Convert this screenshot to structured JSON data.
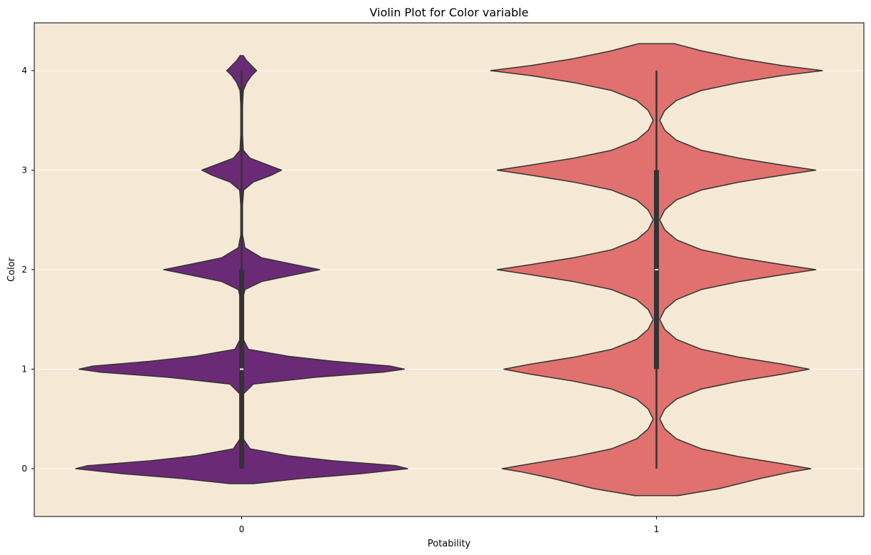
{
  "chart_data": {
    "type": "violin",
    "title": "Violin Plot for Color variable",
    "xlabel": "Potability",
    "ylabel": "Color",
    "categories": [
      "0",
      "1"
    ],
    "ylim": [
      -0.48,
      4.48
    ],
    "y_ticks": [
      0,
      1,
      2,
      3,
      4
    ],
    "grid": "horizontal",
    "background_color": "#f5e9d6",
    "series": [
      {
        "category": "0",
        "color": "#6b2a76",
        "box": {
          "q1": 0,
          "median": 1,
          "q3": 2,
          "whisker_low": 0,
          "whisker_high": 4
        },
        "density": [
          [
            -0.15,
            0.07
          ],
          [
            -0.1,
            0.35
          ],
          [
            -0.05,
            0.72
          ],
          [
            0.0,
            1.0
          ],
          [
            0.03,
            0.93
          ],
          [
            0.08,
            0.55
          ],
          [
            0.13,
            0.28
          ],
          [
            0.2,
            0.05
          ],
          [
            0.3,
            0.01
          ],
          [
            0.45,
            0.005
          ],
          [
            0.6,
            0.005
          ],
          [
            0.75,
            0.01
          ],
          [
            0.85,
            0.07
          ],
          [
            0.92,
            0.45
          ],
          [
            0.97,
            0.85
          ],
          [
            1.0,
            0.98
          ],
          [
            1.03,
            0.9
          ],
          [
            1.08,
            0.55
          ],
          [
            1.13,
            0.28
          ],
          [
            1.2,
            0.04
          ],
          [
            1.3,
            0.01
          ],
          [
            1.5,
            0.005
          ],
          [
            1.7,
            0.005
          ],
          [
            1.8,
            0.02
          ],
          [
            1.88,
            0.12
          ],
          [
            1.95,
            0.32
          ],
          [
            2.0,
            0.47
          ],
          [
            2.05,
            0.32
          ],
          [
            2.12,
            0.12
          ],
          [
            2.22,
            0.02
          ],
          [
            2.35,
            0.005
          ],
          [
            2.65,
            0.005
          ],
          [
            2.8,
            0.012
          ],
          [
            2.88,
            0.07
          ],
          [
            2.95,
            0.18
          ],
          [
            3.0,
            0.24
          ],
          [
            3.05,
            0.16
          ],
          [
            3.12,
            0.05
          ],
          [
            3.2,
            0.01
          ],
          [
            3.35,
            0.005
          ],
          [
            3.65,
            0.005
          ],
          [
            3.8,
            0.01
          ],
          [
            3.88,
            0.03
          ],
          [
            3.95,
            0.06
          ],
          [
            4.0,
            0.09
          ],
          [
            4.05,
            0.06
          ],
          [
            4.1,
            0.03
          ],
          [
            4.15,
            0.01
          ]
        ]
      },
      {
        "category": "1",
        "color": "#e0716e",
        "box": {
          "q1": 1,
          "median": 2,
          "q3": 3,
          "whisker_low": 0,
          "whisker_high": 4
        },
        "density": [
          [
            -0.27,
            0.13
          ],
          [
            -0.2,
            0.38
          ],
          [
            -0.1,
            0.62
          ],
          [
            -0.03,
            0.82
          ],
          [
            0.0,
            0.93
          ],
          [
            0.05,
            0.76
          ],
          [
            0.12,
            0.5
          ],
          [
            0.2,
            0.27
          ],
          [
            0.3,
            0.12
          ],
          [
            0.4,
            0.05
          ],
          [
            0.5,
            0.02
          ],
          [
            0.6,
            0.05
          ],
          [
            0.7,
            0.12
          ],
          [
            0.8,
            0.27
          ],
          [
            0.88,
            0.5
          ],
          [
            0.95,
            0.76
          ],
          [
            1.0,
            0.92
          ],
          [
            1.05,
            0.76
          ],
          [
            1.12,
            0.5
          ],
          [
            1.2,
            0.27
          ],
          [
            1.3,
            0.12
          ],
          [
            1.4,
            0.05
          ],
          [
            1.5,
            0.02
          ],
          [
            1.6,
            0.05
          ],
          [
            1.7,
            0.12
          ],
          [
            1.8,
            0.27
          ],
          [
            1.88,
            0.5
          ],
          [
            1.95,
            0.76
          ],
          [
            2.0,
            0.96
          ],
          [
            2.05,
            0.76
          ],
          [
            2.12,
            0.5
          ],
          [
            2.2,
            0.27
          ],
          [
            2.3,
            0.12
          ],
          [
            2.4,
            0.05
          ],
          [
            2.5,
            0.02
          ],
          [
            2.6,
            0.05
          ],
          [
            2.7,
            0.12
          ],
          [
            2.8,
            0.27
          ],
          [
            2.88,
            0.5
          ],
          [
            2.95,
            0.76
          ],
          [
            3.0,
            0.96
          ],
          [
            3.05,
            0.76
          ],
          [
            3.12,
            0.5
          ],
          [
            3.2,
            0.27
          ],
          [
            3.3,
            0.12
          ],
          [
            3.4,
            0.05
          ],
          [
            3.5,
            0.02
          ],
          [
            3.6,
            0.05
          ],
          [
            3.7,
            0.12
          ],
          [
            3.8,
            0.27
          ],
          [
            3.88,
            0.5
          ],
          [
            3.95,
            0.76
          ],
          [
            4.0,
            1.0
          ],
          [
            4.05,
            0.76
          ],
          [
            4.12,
            0.5
          ],
          [
            4.2,
            0.27
          ],
          [
            4.27,
            0.11
          ]
        ]
      }
    ]
  }
}
